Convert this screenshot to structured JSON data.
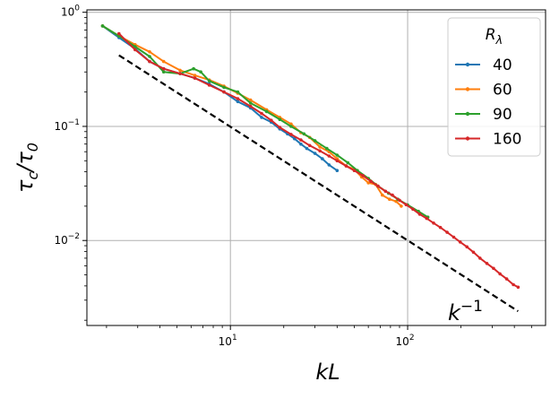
{
  "chart_data": {
    "type": "line",
    "scale": "log-log",
    "xlabel": "kL",
    "ylabel": "τc/τ0",
    "xlim": [
      1.55,
      600
    ],
    "ylim": [
      0.0018,
      1.05
    ],
    "xticks": [
      {
        "base": "10",
        "exp": "1",
        "value": 10
      },
      {
        "base": "10",
        "exp": "2",
        "value": 100
      }
    ],
    "yticks": [
      {
        "base": "10",
        "exp": "0",
        "value": 1
      },
      {
        "base": "10",
        "exp": "−1",
        "value": 0.1
      },
      {
        "base": "10",
        "exp": "−2",
        "value": 0.01
      }
    ],
    "grid": true,
    "legend": {
      "title": "Rλ",
      "placement": "top-right"
    },
    "annotation": {
      "text": "k",
      "exp": "−1",
      "x": 190,
      "y": 0.0019
    },
    "reference_line": {
      "style": "dashed",
      "color": "#000000",
      "x": [
        2.35,
        420
      ],
      "y": [
        0.42,
        0.0024
      ]
    },
    "series": [
      {
        "name": "40",
        "color": "#1f77b4",
        "x": [
          1.9,
          2.35,
          2.9,
          3.5,
          4.2,
          5.2,
          6.3,
          7.6,
          9.2,
          11,
          13,
          15,
          17,
          19,
          21,
          23,
          25,
          27,
          30,
          33,
          36,
          40
        ],
        "y": [
          0.76,
          0.6,
          0.48,
          0.37,
          0.32,
          0.29,
          0.265,
          0.235,
          0.2,
          0.165,
          0.145,
          0.12,
          0.109,
          0.095,
          0.086,
          0.078,
          0.07,
          0.064,
          0.058,
          0.052,
          0.046,
          0.041
        ]
      },
      {
        "name": "60",
        "color": "#ff7f0e",
        "x": [
          1.9,
          2.35,
          2.9,
          3.5,
          4.2,
          5.2,
          6.3,
          7.6,
          9.2,
          11,
          13,
          16,
          19,
          22,
          25,
          28,
          32,
          36,
          40,
          45,
          50,
          55,
          60,
          66,
          72,
          79,
          86,
          92
        ],
        "y": [
          0.76,
          0.62,
          0.52,
          0.45,
          0.37,
          0.31,
          0.28,
          0.255,
          0.225,
          0.195,
          0.17,
          0.14,
          0.12,
          0.105,
          0.088,
          0.08,
          0.066,
          0.06,
          0.052,
          0.045,
          0.042,
          0.036,
          0.032,
          0.031,
          0.025,
          0.023,
          0.022,
          0.02
        ]
      },
      {
        "name": "90",
        "color": "#2ca02c",
        "x": [
          1.9,
          2.35,
          2.9,
          3.5,
          4.2,
          5.2,
          6.2,
          6.8,
          7.6,
          9.2,
          11,
          13,
          16,
          19,
          22,
          26,
          30,
          35,
          40,
          46,
          52,
          60,
          68,
          78,
          88,
          100,
          115,
          130
        ],
        "y": [
          0.76,
          0.62,
          0.5,
          0.41,
          0.3,
          0.29,
          0.32,
          0.3,
          0.25,
          0.22,
          0.2,
          0.16,
          0.135,
          0.115,
          0.1,
          0.086,
          0.075,
          0.064,
          0.056,
          0.048,
          0.041,
          0.035,
          0.03,
          0.026,
          0.023,
          0.0205,
          0.018,
          0.016
        ]
      },
      {
        "name": "160",
        "color": "#d62728",
        "x": [
          2.35,
          2.9,
          3.5,
          4.2,
          5.2,
          6.3,
          7.6,
          9.2,
          11,
          13,
          15,
          17,
          19,
          22,
          25,
          28,
          32,
          36,
          40,
          45,
          50,
          56,
          62,
          68,
          75,
          82,
          90,
          98,
          107,
          117,
          128,
          140,
          153,
          167,
          182,
          198,
          216,
          235,
          256,
          280,
          305,
          332,
          362,
          395,
          420
        ],
        "y": [
          0.65,
          0.47,
          0.37,
          0.32,
          0.29,
          0.265,
          0.23,
          0.2,
          0.175,
          0.15,
          0.13,
          0.113,
          0.098,
          0.085,
          0.076,
          0.068,
          0.061,
          0.055,
          0.05,
          0.045,
          0.041,
          0.037,
          0.033,
          0.03,
          0.027,
          0.025,
          0.0225,
          0.0206,
          0.0188,
          0.017,
          0.0156,
          0.0142,
          0.013,
          0.0118,
          0.0107,
          0.0097,
          0.0088,
          0.0079,
          0.007,
          0.0063,
          0.0057,
          0.0051,
          0.0046,
          0.0041,
          0.0039
        ]
      }
    ]
  }
}
